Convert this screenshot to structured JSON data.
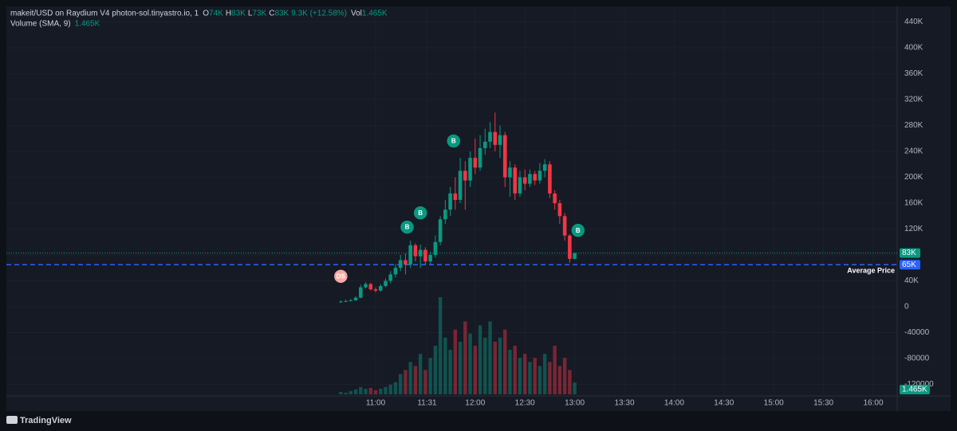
{
  "chart_data": {
    "type": "candlestick",
    "header": {
      "symbol": "makeit/USD on Raydium V4 photon-sol.tinyastro.io, 1",
      "ohlc": [
        {
          "key": "O",
          "value": "74K"
        },
        {
          "key": "H",
          "value": "83K"
        },
        {
          "key": "L",
          "value": "73K"
        },
        {
          "key": "C",
          "value": "83K"
        }
      ],
      "change": "9.3K (+12.58%)",
      "vol_key": "Vol",
      "vol": "1.465K"
    },
    "volume_study": {
      "name": "Volume (SMA, 9)",
      "value": "1.465K"
    },
    "up_color": "#089981",
    "down_color": "#f23645",
    "x": [
      "10:39",
      "10:42",
      "10:45",
      "10:48",
      "10:51",
      "10:54",
      "10:57",
      "11:00",
      "11:03",
      "11:06",
      "11:09",
      "11:12",
      "11:15",
      "11:18",
      "11:21",
      "11:24",
      "11:27",
      "11:30",
      "11:33",
      "11:36",
      "11:39",
      "11:42",
      "11:45",
      "11:48",
      "11:51",
      "11:54",
      "11:57",
      "12:00",
      "12:03",
      "12:06",
      "12:09",
      "12:12",
      "12:15",
      "12:18",
      "12:21",
      "12:24",
      "12:27",
      "12:30",
      "12:33",
      "12:36",
      "12:39",
      "12:42",
      "12:45",
      "12:48",
      "12:51",
      "12:54",
      "12:57",
      "13:00"
    ],
    "open": [
      8000,
      8000,
      9000,
      10000,
      14000,
      30000,
      35000,
      27000,
      25000,
      32000,
      40000,
      50000,
      60000,
      72000,
      65000,
      95000,
      78000,
      88000,
      70000,
      80000,
      100000,
      135000,
      150000,
      175000,
      165000,
      210000,
      195000,
      230000,
      215000,
      245000,
      255000,
      270000,
      250000,
      265000,
      200000,
      215000,
      175000,
      200000,
      190000,
      205000,
      195000,
      210000,
      220000,
      175000,
      160000,
      140000,
      110000,
      74000
    ],
    "high": [
      10000,
      11000,
      12000,
      16000,
      34000,
      38000,
      37000,
      30000,
      35000,
      44000,
      55000,
      66000,
      80000,
      82000,
      102000,
      98000,
      96000,
      92000,
      85000,
      110000,
      140000,
      165000,
      185000,
      200000,
      230000,
      225000,
      240000,
      260000,
      265000,
      275000,
      285000,
      300000,
      280000,
      270000,
      225000,
      220000,
      210000,
      212000,
      212000,
      210000,
      222000,
      228000,
      225000,
      180000,
      165000,
      145000,
      112000,
      83000
    ],
    "low": [
      6000,
      7000,
      8000,
      9000,
      13000,
      28000,
      25000,
      22000,
      23000,
      30000,
      36000,
      45000,
      55000,
      50000,
      60000,
      70000,
      60000,
      65000,
      66000,
      76000,
      95000,
      128000,
      140000,
      150000,
      160000,
      150000,
      185000,
      205000,
      210000,
      235000,
      245000,
      240000,
      230000,
      185000,
      170000,
      165000,
      170000,
      180000,
      185000,
      188000,
      190000,
      200000,
      168000,
      150000,
      128000,
      102000,
      68000,
      73000
    ],
    "close": [
      8000,
      9000,
      10000,
      14000,
      30000,
      35000,
      27000,
      25000,
      32000,
      40000,
      50000,
      60000,
      72000,
      65000,
      95000,
      78000,
      88000,
      70000,
      80000,
      100000,
      135000,
      150000,
      175000,
      165000,
      210000,
      195000,
      230000,
      215000,
      245000,
      255000,
      270000,
      250000,
      265000,
      200000,
      215000,
      175000,
      200000,
      190000,
      205000,
      195000,
      210000,
      220000,
      175000,
      160000,
      140000,
      110000,
      74000,
      83000
    ],
    "volume": [
      300,
      200,
      400,
      600,
      900,
      700,
      800,
      500,
      700,
      900,
      1200,
      1500,
      2500,
      3000,
      4000,
      3500,
      5000,
      3000,
      4500,
      6000,
      12000,
      7000,
      5500,
      8000,
      6500,
      9000,
      7500,
      6000,
      8500,
      7000,
      9000,
      6500,
      7000,
      8000,
      5500,
      6000,
      4500,
      5000,
      4000,
      4500,
      3500,
      5000,
      4000,
      6000,
      3500,
      4500,
      3000,
      1465
    ],
    "volume_lim": [
      0,
      12000
    ],
    "volume_label": "1.465K",
    "ylim": [
      -137800,
      464000
    ],
    "yticks": [
      {
        "value": 440000,
        "label": "440K"
      },
      {
        "value": 400000,
        "label": "400K"
      },
      {
        "value": 360000,
        "label": "360K"
      },
      {
        "value": 320000,
        "label": "320K"
      },
      {
        "value": 280000,
        "label": "280K"
      },
      {
        "value": 240000,
        "label": "240K"
      },
      {
        "value": 200000,
        "label": "200K"
      },
      {
        "value": 160000,
        "label": "160K"
      },
      {
        "value": 120000,
        "label": "120K"
      },
      {
        "value": 80000,
        "label": "80K"
      },
      {
        "value": 40000,
        "label": "40K"
      },
      0,
      -40000,
      -80000,
      -120000
    ],
    "xticks": [
      "11:00",
      "11:31",
      "12:00",
      "12:30",
      "13:00",
      "13:30",
      "14:00",
      "14:30",
      "15:00",
      "15:30",
      "16:00"
    ],
    "current_price": {
      "value": 83000,
      "label": "83K",
      "color": "#089981"
    },
    "average_price": {
      "value": 65000,
      "label": "65K",
      "name": "Average Price",
      "color": "#2962ff"
    },
    "markers": [
      {
        "x": "10:39",
        "y": 47000,
        "label": "DS",
        "color": "#f7a8a5"
      },
      {
        "x": "11:19",
        "y": 123000,
        "label": "B",
        "color": "#089981"
      },
      {
        "x": "11:27",
        "y": 145000,
        "label": "B",
        "color": "#089981"
      },
      {
        "x": "11:47",
        "y": 256000,
        "label": "B",
        "color": "#089981"
      },
      {
        "x": "13:02",
        "y": 118000,
        "label": "B",
        "color": "#089981"
      }
    ],
    "grid": true
  },
  "footer": {
    "brand": "TradingView"
  }
}
